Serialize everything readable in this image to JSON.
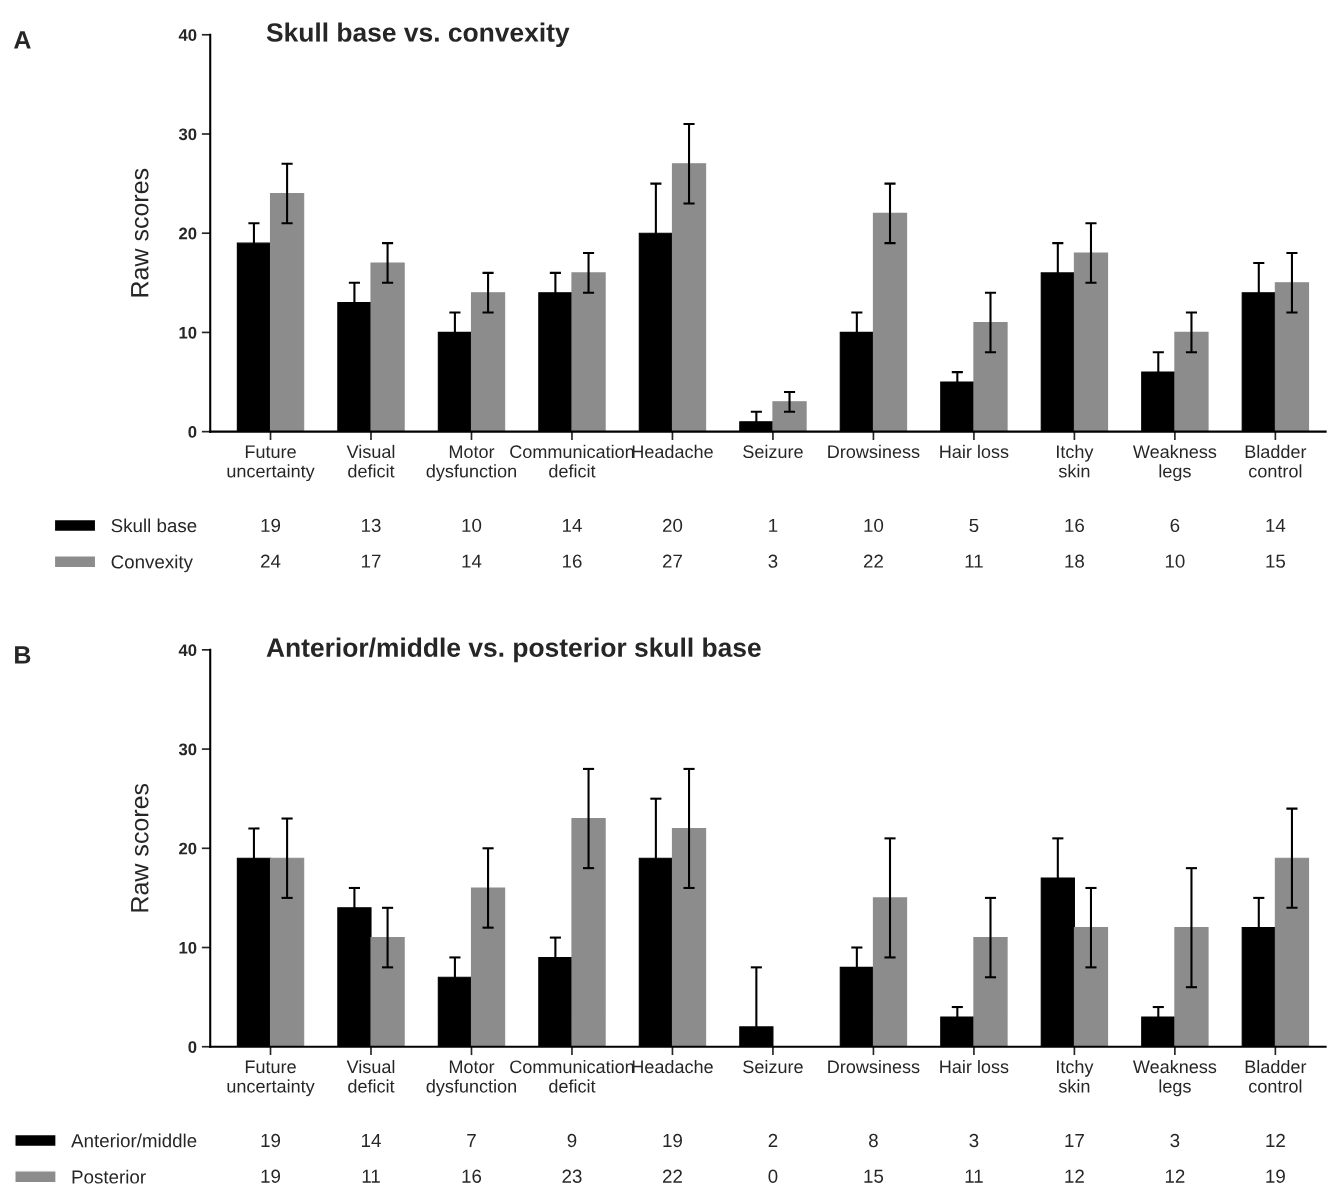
{
  "chart_data": [
    {
      "type": "bar",
      "title": "Skull base vs. convexity",
      "ylabel": "Raw scores",
      "annotations": [
        "A"
      ],
      "categories": [
        "Future\nuncertainty",
        "Visual\ndeficit",
        "Motor\ndysfunction",
        "Communication\ndeficit",
        "Headache",
        "Seizure",
        "Drowsiness",
        "Hair loss",
        "Itchy\nskin",
        "Weakness\nlegs",
        "Bladder\ncontrol"
      ],
      "series": [
        {
          "name": "Skull base",
          "color": "#000000",
          "values": [
            19,
            13,
            10,
            14,
            20,
            1,
            10,
            5,
            16,
            6,
            14
          ],
          "errors": [
            2,
            2,
            2,
            2,
            5,
            1,
            2,
            1,
            3,
            2,
            3
          ]
        },
        {
          "name": "Convexity",
          "color": "#8c8c8c",
          "values": [
            24,
            17,
            14,
            16,
            27,
            3,
            22,
            11,
            18,
            10,
            15
          ],
          "errors": [
            3,
            2,
            2,
            2,
            4,
            1,
            3,
            3,
            3,
            2,
            3
          ]
        }
      ],
      "ylim": [
        0,
        40
      ],
      "yticks": [
        0,
        10,
        20,
        30,
        40
      ],
      "data_labels": true,
      "legend": "bottom left",
      "grid": false
    },
    {
      "type": "bar",
      "title": "Anterior/middle vs. posterior skull base",
      "ylabel": "Raw scores",
      "annotations": [
        "B"
      ],
      "categories": [
        "Future\nuncertainty",
        "Visual\ndeficit",
        "Motor\ndysfunction",
        "Communication\ndeficit",
        "Headache",
        "Seizure",
        "Drowsiness",
        "Hair loss",
        "Itchy\nskin",
        "Weakness\nlegs",
        "Bladder\ncontrol"
      ],
      "series": [
        {
          "name": "Anterior/middle",
          "color": "#000000",
          "values": [
            19,
            14,
            7,
            9,
            19,
            2,
            8,
            3,
            17,
            3,
            12
          ],
          "errors": [
            3,
            2,
            2,
            2,
            6,
            6,
            2,
            1,
            4,
            1,
            3
          ]
        },
        {
          "name": "Posterior",
          "color": "#8c8c8c",
          "values": [
            19,
            11,
            16,
            23,
            22,
            0,
            15,
            11,
            12,
            12,
            19
          ],
          "errors": [
            4,
            3,
            4,
            5,
            6,
            null,
            6,
            4,
            4,
            6,
            5
          ]
        }
      ],
      "ylim": [
        0,
        40
      ],
      "yticks": [
        0,
        10,
        20,
        30,
        40
      ],
      "data_labels": true,
      "legend": "bottom left",
      "grid": false
    }
  ]
}
